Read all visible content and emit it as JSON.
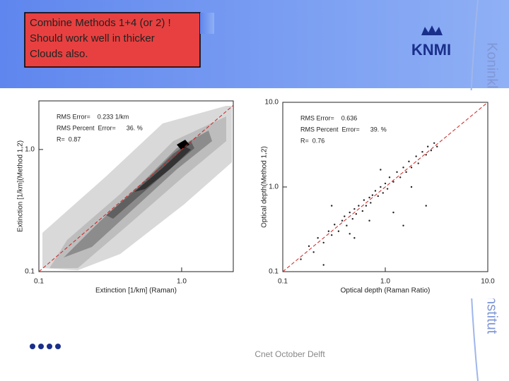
{
  "slide": {
    "title_lines": [
      "Combine Methods 1+4 (or 2) !",
      "Should work well in thicker",
      "Clouds also."
    ],
    "logo": "KNMI",
    "side_text": [
      "Koninkl",
      "nstitut"
    ],
    "footer": "Cnet October Delft"
  },
  "chart_data": [
    {
      "type": "contour",
      "x_label": "Extinction [1/km] (Raman)",
      "y_label": "Extinction [1/km](Method 1,2)",
      "annotations": [
        "RMS Error=    0.233 1/km",
        "RMS Percent  Error=      36. %",
        "R=  0.87"
      ],
      "xscale": "log",
      "yscale": "log",
      "xlim": [
        0.1,
        2.3
      ],
      "ylim": [
        0.1,
        2.5
      ],
      "xticks": [
        0.1,
        {
          "value": 1,
          "label": "1.0"
        }
      ],
      "yticks": [
        0.1,
        {
          "value": 1,
          "label": "1.0"
        }
      ],
      "diagonal_color": "#cc2222"
    },
    {
      "type": "scatter",
      "x_label": "Optical depth (Raman Ratio)",
      "y_label": "Optical depth(Method 1,2)",
      "annotations": [
        "RMS Error=    0.636",
        "RMS Percent  Error=      39. %",
        "R=  0.76"
      ],
      "xscale": "log",
      "yscale": "log",
      "xlim": [
        0.1,
        10
      ],
      "ylim": [
        0.1,
        10
      ],
      "xticks": [
        0.1,
        {
          "value": 1,
          "label": "1.0"
        },
        {
          "value": 10,
          "label": "10.0"
        }
      ],
      "yticks": [
        0.1,
        {
          "value": 1,
          "label": "1.0"
        },
        {
          "value": 10,
          "label": "10.0"
        }
      ],
      "diagonal_color": "#cc2222",
      "color": "#222222",
      "x": [
        0.15,
        0.18,
        0.2,
        0.22,
        0.25,
        0.28,
        0.3,
        0.32,
        0.35,
        0.38,
        0.4,
        0.42,
        0.45,
        0.48,
        0.5,
        0.52,
        0.55,
        0.6,
        0.62,
        0.65,
        0.7,
        0.72,
        0.75,
        0.8,
        0.85,
        0.9,
        0.95,
        1.0,
        1.05,
        1.1,
        1.2,
        1.3,
        1.4,
        1.5,
        1.6,
        1.7,
        1.8,
        2.0,
        2.1,
        2.3,
        2.5,
        2.6,
        2.8,
        3.0,
        3.2,
        0.3,
        0.5,
        0.7,
        1.2,
        1.5,
        2.5,
        0.25,
        0.9,
        1.8,
        0.45
      ],
      "values": [
        0.14,
        0.2,
        0.17,
        0.25,
        0.22,
        0.3,
        0.27,
        0.36,
        0.3,
        0.4,
        0.45,
        0.35,
        0.5,
        0.42,
        0.55,
        0.48,
        0.6,
        0.52,
        0.7,
        0.6,
        0.75,
        0.65,
        0.8,
        0.9,
        0.78,
        1.0,
        0.85,
        1.1,
        0.95,
        1.3,
        1.15,
        1.5,
        1.3,
        1.7,
        1.5,
        2.0,
        1.7,
        2.3,
        1.9,
        2.6,
        2.4,
        3.0,
        2.7,
        3.3,
        3.0,
        0.6,
        0.25,
        0.4,
        0.5,
        0.35,
        0.6,
        0.12,
        1.6,
        1.0,
        0.28
      ]
    }
  ]
}
